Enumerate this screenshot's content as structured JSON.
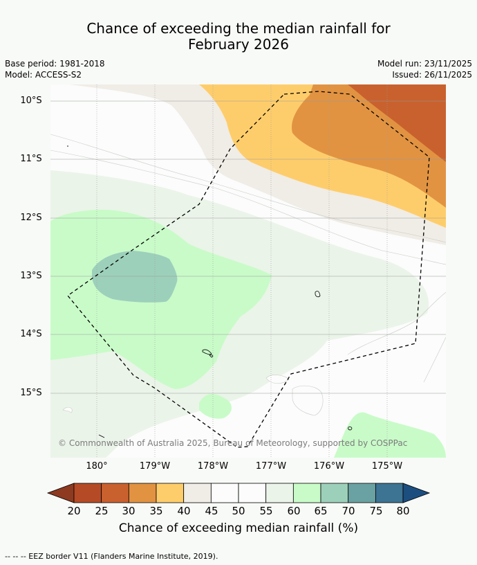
{
  "title_line1": "Chance of exceeding the median rainfall for",
  "title_line2": "February 2026",
  "meta": {
    "base_period": "Base period: 1981-2018",
    "model": "Model: ACCESS-S2",
    "model_run": "Model run: 23/11/2025",
    "issued": "Issued: 26/11/2025"
  },
  "map": {
    "lat_labels": [
      "10°S",
      "11°S",
      "12°S",
      "13°S",
      "14°S",
      "15°S"
    ],
    "lon_labels": [
      "180°",
      "179°W",
      "178°W",
      "177°W",
      "176°W",
      "175°W"
    ],
    "copyright": "© Commonwealth of Australia 2025, Bureau of Meteorology, supported by COSPPac"
  },
  "colorbar": {
    "labels": [
      "20",
      "25",
      "30",
      "35",
      "40",
      "45",
      "50",
      "55",
      "60",
      "65",
      "70",
      "75",
      "80"
    ],
    "colors": [
      "#8e3a20",
      "#b54b26",
      "#c9612e",
      "#e19342",
      "#fecd6b",
      "#f0ece6",
      "#fbfcfb",
      "#fbfcfb",
      "#ebf4e9",
      "#c9fbc9",
      "#9dd0bb",
      "#6aa2a3",
      "#3d7393",
      "#1c4f80"
    ],
    "title": "Chance of exceeding median rainfall (%)"
  },
  "footer": "--  --  -- EEZ border V11 (Flanders Marine Institute, 2019)."
}
